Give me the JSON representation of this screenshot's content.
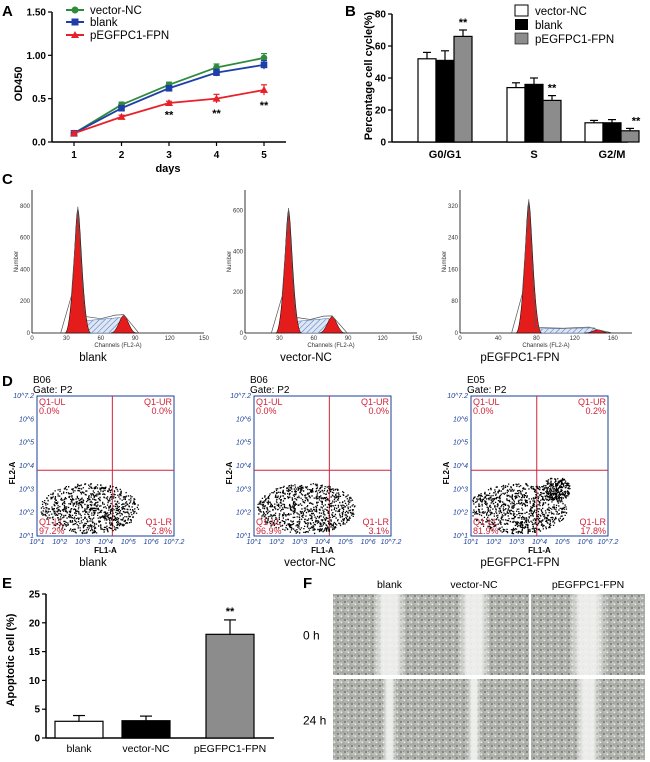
{
  "panels": {
    "a": "A",
    "b": "B",
    "c": "C",
    "d": "D",
    "e": "E",
    "f": "F"
  },
  "colors": {
    "vector_nc": "#2e8b3c",
    "blank": "#1f3fa8",
    "pegfpc1": "#e8202a",
    "bar_vector": "#ffffff",
    "bar_blank": "#000000",
    "bar_peg": "#8c8c8c",
    "peak": "#e51c1c",
    "quad_line": "#d0243a",
    "quad_text": "#d0243a",
    "facs_axis": "#1a3f9a"
  },
  "chart_data": [
    {
      "id": "A",
      "type": "line",
      "title": "",
      "xlabel": "days",
      "ylabel": "OD450",
      "x": [
        1,
        2,
        3,
        4,
        5
      ],
      "ylim": [
        0,
        1.5
      ],
      "yticks": [
        "0.0",
        "0.5",
        "1.00",
        "1.50"
      ],
      "series": [
        {
          "name": "vector-NC",
          "values": [
            0.1,
            0.43,
            0.66,
            0.86,
            0.97
          ],
          "err": [
            0.02,
            0.03,
            0.03,
            0.04,
            0.05
          ]
        },
        {
          "name": "blank",
          "values": [
            0.1,
            0.39,
            0.62,
            0.8,
            0.89
          ],
          "err": [
            0.02,
            0.03,
            0.03,
            0.04,
            0.05
          ]
        },
        {
          "name": "pEGFPC1-FPN",
          "values": [
            0.1,
            0.29,
            0.45,
            0.5,
            0.6
          ],
          "err": [
            0.02,
            0.02,
            0.02,
            0.05,
            0.06
          ]
        }
      ],
      "significance": [
        {
          "x": 3,
          "label": "**"
        },
        {
          "x": 4,
          "label": "**"
        },
        {
          "x": 5,
          "label": "**"
        }
      ]
    },
    {
      "id": "B",
      "type": "bar",
      "title": "",
      "xlabel": "",
      "ylabel": "Percentage cell cycle(%)",
      "categories": [
        "G0/G1",
        "S",
        "G2/M"
      ],
      "ylim": [
        0,
        80
      ],
      "yticks": [
        "0",
        "20",
        "40",
        "60",
        "80"
      ],
      "series": [
        {
          "name": "vector-NC",
          "values": [
            52,
            34,
            12
          ],
          "err": [
            4,
            3,
            1.5
          ]
        },
        {
          "name": "blank",
          "values": [
            51,
            36,
            12
          ],
          "err": [
            6,
            4,
            2
          ]
        },
        {
          "name": "pEGFPC1-FPN",
          "values": [
            66,
            26,
            7
          ],
          "err": [
            4,
            3,
            1.5
          ]
        }
      ],
      "significance": [
        "**",
        "**",
        "**"
      ]
    },
    {
      "id": "C",
      "type": "area",
      "title": "",
      "histograms": [
        {
          "label": "blank",
          "channel_label": "Channels (FL2-A)",
          "y_label": "Number",
          "xticks": [
            "0",
            "30",
            "60",
            "90",
            "120",
            "150"
          ],
          "yticks": [
            "0",
            "200",
            "400",
            "600",
            "800"
          ],
          "ymax": 900,
          "xmax": 150,
          "g1": 40,
          "g1_height": 780,
          "g2": 80,
          "g2_height": 110,
          "plateau": 75
        },
        {
          "label": "vector-NC",
          "channel_label": "Channels (FL2-A)",
          "y_label": "Number",
          "xticks": [
            "0",
            "30",
            "60",
            "90",
            "120",
            "150"
          ],
          "yticks": [
            "0",
            "200",
            "400",
            "600"
          ],
          "ymax": 700,
          "xmax": 150,
          "g1": 38,
          "g1_height": 600,
          "g2": 76,
          "g2_height": 80,
          "plateau": 55
        },
        {
          "label": "pEGFPC1-FPN",
          "channel_label": "Channels (FL2-A)",
          "y_label": "Number",
          "xticks": [
            "0",
            "40",
            "80",
            "120",
            "160"
          ],
          "yticks": [
            "0",
            "80",
            "160",
            "240",
            "320"
          ],
          "ymax": 360,
          "xmax": 180,
          "g1": 72,
          "g1_height": 330,
          "g2": 144,
          "g2_height": 8,
          "plateau": 10
        }
      ]
    },
    {
      "id": "D",
      "type": "scatter",
      "title": "",
      "plots": [
        {
          "label": "blank",
          "sample": "B06",
          "gate": "Gate: P2",
          "xlabel": "FL1-A",
          "ylabel": "FL2-A",
          "quadrants": {
            "UL": "0.0%",
            "UR": "0.0%",
            "LL": "97.2%",
            "LR": "2.8%"
          }
        },
        {
          "label": "vector-NC",
          "sample": "B06",
          "gate": "Gate: P2",
          "xlabel": "FL1-A",
          "ylabel": "FL2-A",
          "quadrants": {
            "UL": "0.0%",
            "UR": "0.0%",
            "LL": "96.9%",
            "LR": "3.1%"
          }
        },
        {
          "label": "pEGFPC1-FPN",
          "sample": "E05",
          "gate": "Gate: P2",
          "xlabel": "FL1-A",
          "ylabel": "FL2-A",
          "quadrants": {
            "UL": "0.0%",
            "UR": "0.2%",
            "LL": "81.9%",
            "LR": "17.8%"
          }
        }
      ],
      "quadrant_names": {
        "UL": "Q1-UL",
        "UR": "Q1-UR",
        "LL": "Q1-LL",
        "LR": "Q1-LR"
      },
      "axis_ticks": [
        "10^1",
        "10^2",
        "10^3",
        "10^4",
        "10^5",
        "10^6",
        "10^7.2"
      ]
    },
    {
      "id": "E",
      "type": "bar",
      "title": "",
      "xlabel": "",
      "ylabel": "Apoptotic cell (%)",
      "categories": [
        "blank",
        "vector-NC",
        "pEGFPC1-FPN"
      ],
      "values": [
        2.9,
        3.0,
        18.0
      ],
      "err": [
        1.0,
        0.8,
        2.5
      ],
      "ylim": [
        0,
        25
      ],
      "yticks": [
        "0",
        "5",
        "10",
        "15",
        "20",
        "25"
      ],
      "significance": [
        "",
        "",
        "**"
      ]
    },
    {
      "id": "F",
      "type": "table",
      "title": "",
      "columns": [
        "blank",
        "vector-NC",
        "pEGFPC1-FPN"
      ],
      "rows": [
        "0 h",
        "24 h"
      ]
    }
  ]
}
